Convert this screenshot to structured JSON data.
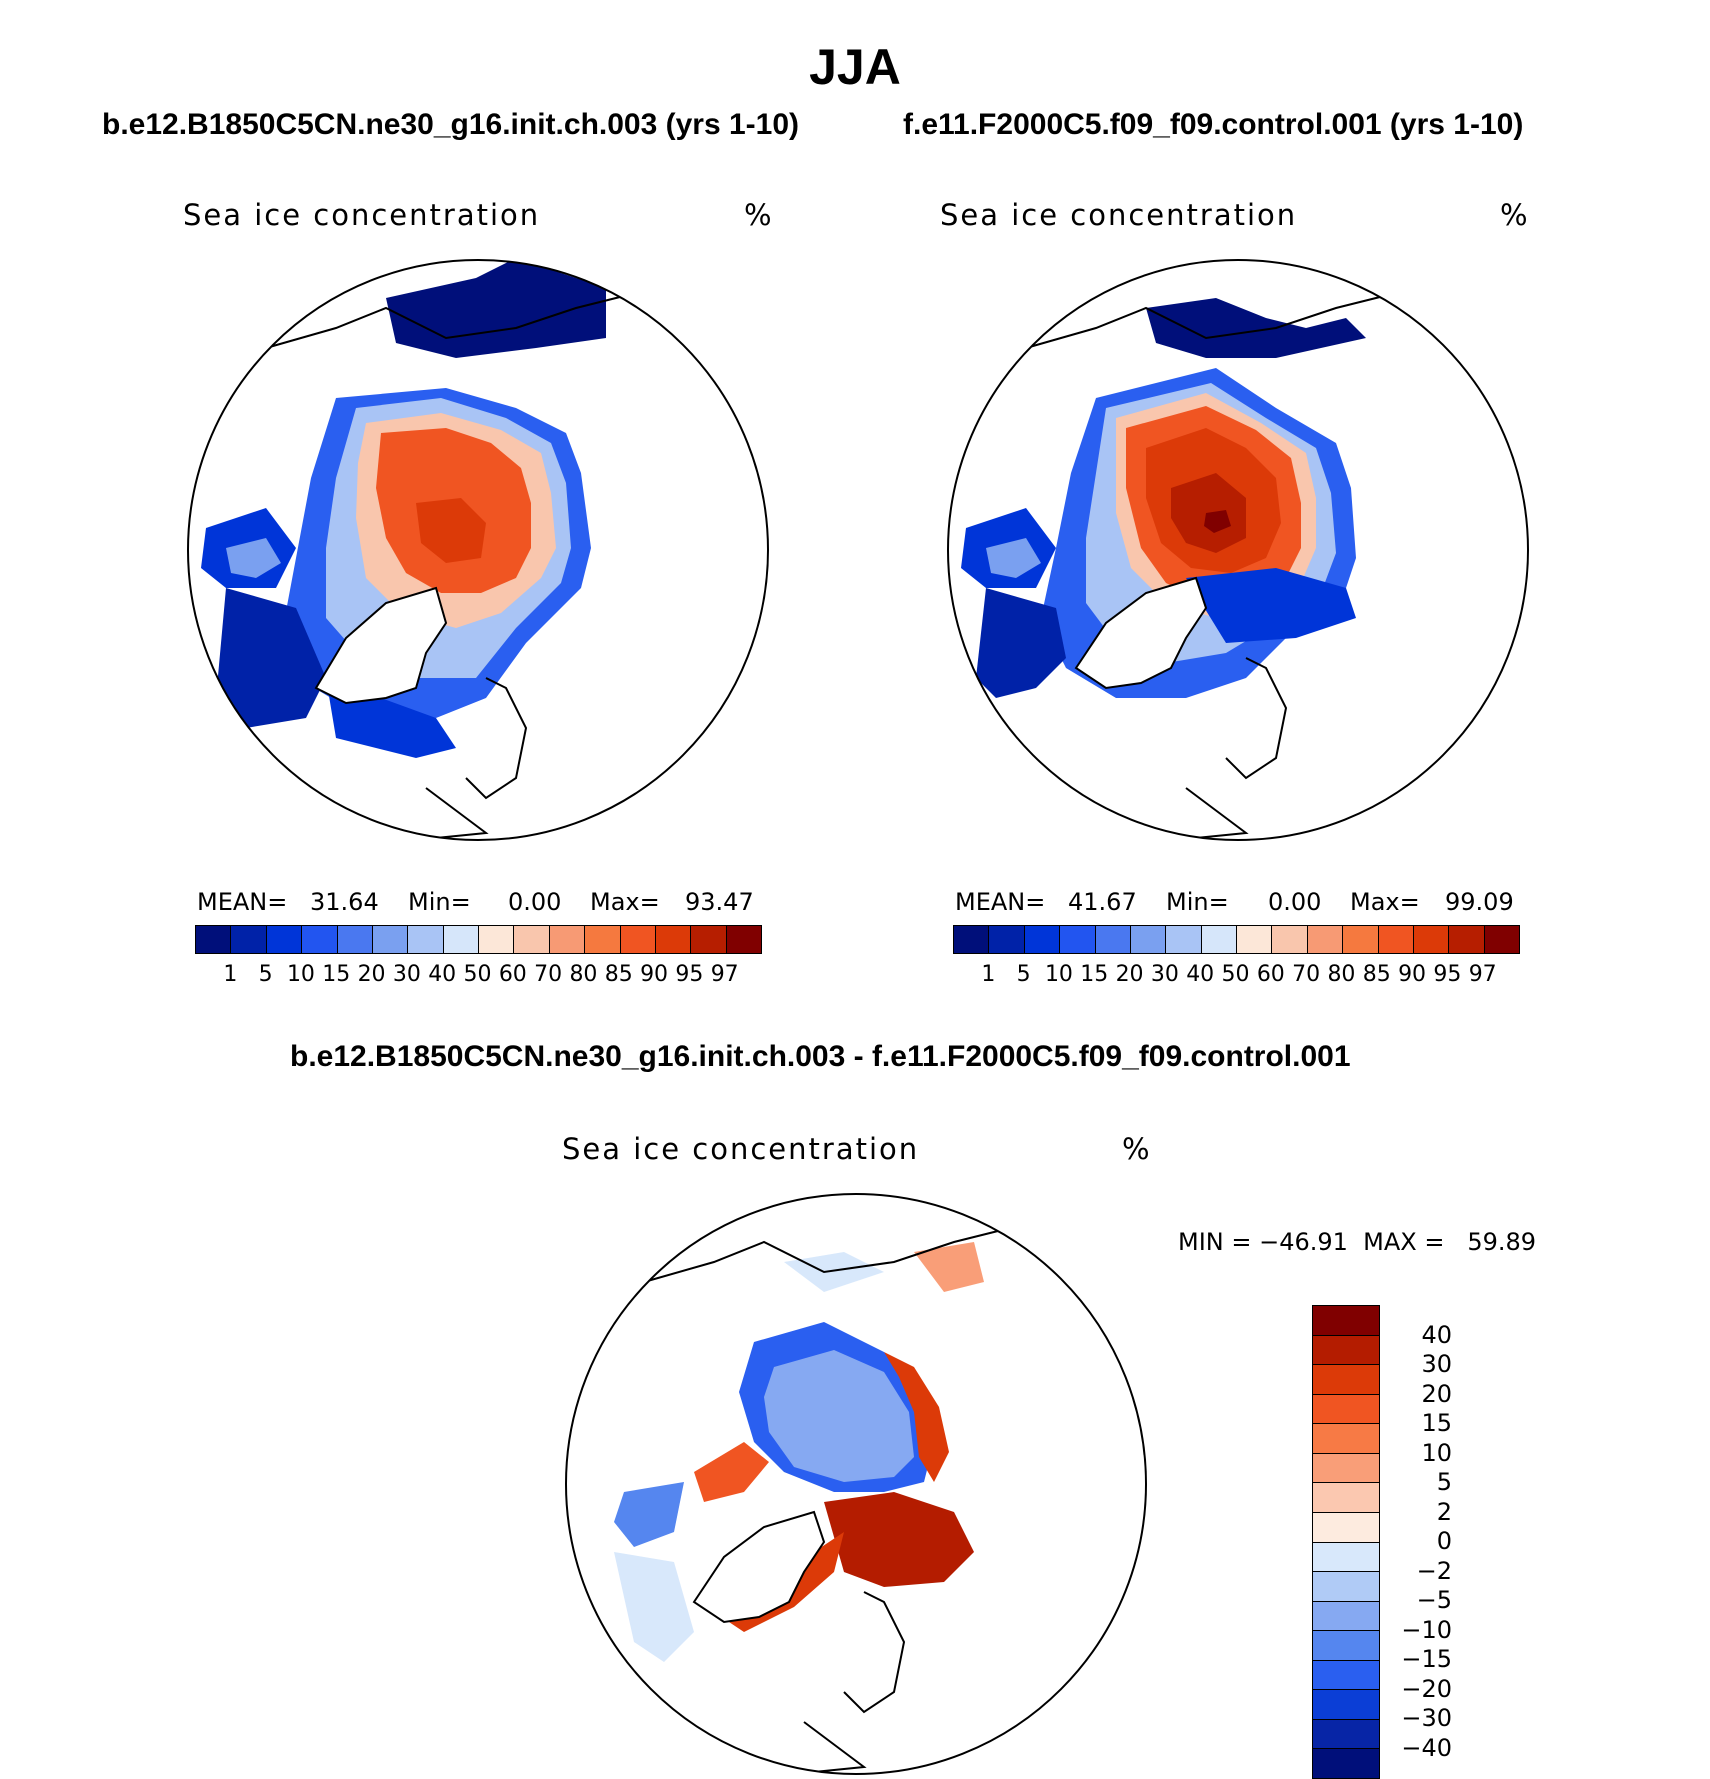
{
  "title": "JJA",
  "panels": [
    {
      "case_title": "b.e12.B1850C5CN.ne30_g16.init.ch.003 (yrs 1-10)",
      "variable": "Sea ice concentration",
      "units": "%",
      "mean_label": "MEAN=",
      "mean_value": "31.64",
      "min_label": "Min=",
      "min_value": "0.00",
      "max_label": "Max=",
      "max_value": "93.47"
    },
    {
      "case_title": "f.e11.F2000C5.f09_f09.control.001 (yrs 1-10)",
      "variable": "Sea ice concentration",
      "units": "%",
      "mean_label": "MEAN=",
      "mean_value": "41.67",
      "min_label": "Min=",
      "min_value": "0.00",
      "max_label": "Max=",
      "max_value": "99.09"
    }
  ],
  "diff_panel": {
    "case_title": "b.e12.B1850C5CN.ne30_g16.init.ch.003 - f.e11.F2000C5.f09_f09.control.001",
    "variable": "Sea ice concentration",
    "units": "%",
    "minmax_text": "MIN = −46.91  MAX =   59.89"
  },
  "colorbar_levels": [
    "1",
    "5",
    "10",
    "15",
    "20",
    "30",
    "40",
    "50",
    "60",
    "70",
    "80",
    "85",
    "90",
    "95",
    "97"
  ],
  "colorbar_colors": [
    "#000f7a",
    "#0022a8",
    "#0035d8",
    "#2255f0",
    "#4a78f0",
    "#7aa0f0",
    "#a9c4f5",
    "#d6e6fa",
    "#fce7d8",
    "#f9c6ad",
    "#f79a74",
    "#f5793f",
    "#f05522",
    "#dc3a08",
    "#b61e00",
    "#800000"
  ],
  "diff_levels": [
    "40",
    "30",
    "20",
    "15",
    "10",
    "5",
    "2",
    "0",
    "−2",
    "−5",
    "−10",
    "−15",
    "−20",
    "−30",
    "−40"
  ],
  "diff_colors": [
    "#800000",
    "#b41c00",
    "#dc3a08",
    "#f05522",
    "#f77a45",
    "#f99e78",
    "#fbc8b0",
    "#fdebdf",
    "#d8e8fb",
    "#b0cbf6",
    "#86a9f2",
    "#5586ef",
    "#2a5ff0",
    "#0b3ed6",
    "#0725a6",
    "#000f7a"
  ]
}
